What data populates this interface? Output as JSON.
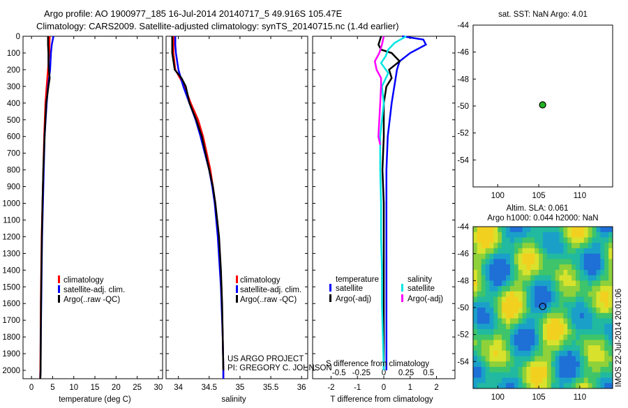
{
  "header": {
    "line1": "Argo profile: AO 1900977_185 16-Jul-2014 20140717_5 49.916S 105.47E",
    "line2": "Climatology: CARS2009. Satellite-adjusted climatology: synTS_20140715.nc (1.4d earlier)"
  },
  "colors": {
    "climatology": "#ff0000",
    "satellite": "#0000ff",
    "argo": "#000000",
    "salt_sat": "#00e5e5",
    "salt_argo": "#ff00ff"
  },
  "chart_data": [
    {
      "type": "line",
      "id": "temperature",
      "xlabel": "temperature (deg C)",
      "xlim": [
        -2,
        31
      ],
      "xticks": [
        0,
        5,
        10,
        15,
        20,
        25,
        30
      ],
      "ylim": [
        0,
        2050
      ],
      "yticks": [
        0,
        100,
        200,
        300,
        400,
        500,
        600,
        700,
        800,
        900,
        1000,
        1100,
        1200,
        1300,
        1400,
        1500,
        1600,
        1700,
        1800,
        1900,
        2000
      ],
      "legend": [
        "climatology",
        "satellite-adj. clim.",
        "Argo(..raw -QC)"
      ],
      "series": [
        {
          "name": "climatology",
          "depth": [
            0,
            100,
            200,
            300,
            400,
            600,
            800,
            1000,
            1200,
            1400,
            1600,
            1800,
            2000,
            2050
          ],
          "values": [
            4.3,
            4.2,
            3.9,
            3.6,
            3.3,
            3.0,
            2.8,
            2.6,
            2.4,
            2.3,
            2.2,
            2.15,
            2.1,
            2.05
          ]
        },
        {
          "name": "satellite-adj. clim.",
          "depth": [
            0,
            50,
            100,
            200,
            300,
            400,
            600,
            800,
            1000,
            1200,
            1400,
            1600,
            1800,
            2000,
            2050
          ],
          "values": [
            5.2,
            4.8,
            4.6,
            4.4,
            3.9,
            3.6,
            3.1,
            2.9,
            2.7,
            2.5,
            2.4,
            2.3,
            2.2,
            2.15,
            2.1
          ]
        },
        {
          "name": "Argo(..raw -QC)",
          "depth": [
            0,
            50,
            100,
            150,
            200,
            250,
            300,
            400,
            600,
            800,
            1000,
            1200,
            1400,
            1600,
            1800,
            2000,
            2050
          ],
          "values": [
            3.9,
            3.9,
            4.0,
            4.0,
            4.1,
            4.3,
            4.0,
            3.5,
            3.1,
            2.8,
            2.6,
            2.45,
            2.35,
            2.25,
            2.2,
            2.15,
            2.1
          ]
        }
      ]
    },
    {
      "type": "line",
      "id": "salinity",
      "xlabel": "salinity",
      "xlim": [
        33.8,
        36.1
      ],
      "xticks": [
        34,
        34.5,
        35,
        35.5,
        36
      ],
      "xtick_labels": [
        "34",
        "34.5",
        "35",
        "35.5",
        "36"
      ],
      "ylim": [
        0,
        2050
      ],
      "legend": [
        "climatology",
        "satellite-adj. clim.",
        "Argo(..raw -QC)"
      ],
      "series": [
        {
          "name": "climatology",
          "depth": [
            0,
            100,
            200,
            300,
            400,
            500,
            600,
            700,
            800,
            900,
            1000,
            1200,
            1500,
            1800,
            2000,
            2050
          ],
          "values": [
            33.92,
            33.92,
            33.95,
            34.1,
            34.2,
            34.32,
            34.4,
            34.46,
            34.52,
            34.56,
            34.6,
            34.65,
            34.7,
            34.72,
            34.73,
            34.73
          ]
        },
        {
          "name": "satellite-adj. clim.",
          "depth": [
            0,
            50,
            100,
            200,
            300,
            400,
            500,
            600,
            700,
            800,
            900,
            1000,
            1200,
            1500,
            1800,
            2000,
            2050
          ],
          "values": [
            33.95,
            33.95,
            33.96,
            34.0,
            34.08,
            34.18,
            34.28,
            34.36,
            34.43,
            34.5,
            34.55,
            34.59,
            34.64,
            34.69,
            34.72,
            34.73,
            34.73
          ]
        },
        {
          "name": "Argo(..raw -QC)",
          "depth": [
            0,
            100,
            150,
            200,
            250,
            300,
            350,
            400,
            500,
            600,
            700,
            800,
            900,
            1000,
            1100,
            1200,
            1400,
            1600,
            1800,
            2000
          ],
          "values": [
            33.9,
            33.9,
            33.92,
            33.94,
            34.05,
            34.12,
            34.15,
            34.18,
            34.29,
            34.38,
            34.44,
            34.5,
            34.56,
            34.6,
            34.63,
            34.66,
            34.69,
            34.71,
            34.72,
            34.73
          ]
        }
      ]
    },
    {
      "type": "line",
      "id": "difference",
      "xlabel": "T difference from climatology",
      "xlabel_top": "S difference from climatology",
      "xlim": [
        -2.7,
        2.7
      ],
      "xticks": [
        -2,
        -1,
        0,
        1,
        2
      ],
      "xtick_labels": [
        "-2",
        "-1",
        "0",
        "1",
        "2"
      ],
      "s_ticks": [
        -0.5,
        -0.25,
        0,
        0.25,
        0.5
      ],
      "s_tick_labels": [
        "-0.5",
        "-0.25",
        "0",
        "0.25",
        "0.5"
      ],
      "ylim": [
        0,
        2050
      ],
      "legend_headers": [
        "temperature",
        "salinity"
      ],
      "legend": [
        "satellite",
        "Argo(-adj)",
        "satellite",
        "Argo(-adj)"
      ],
      "series": [
        {
          "name": "T satellite",
          "depth": [
            0,
            20,
            50,
            100,
            150,
            200,
            300,
            400,
            600,
            800,
            1000,
            1200,
            1400,
            1600,
            1800,
            2000
          ],
          "values": [
            0.7,
            1.5,
            1.6,
            1.0,
            0.6,
            0.5,
            0.4,
            0.3,
            0.15,
            0.1,
            0.1,
            0.1,
            0.1,
            0.1,
            0.1,
            0.1
          ]
        },
        {
          "name": "T Argo(-adj)",
          "depth": [
            0,
            50,
            80,
            100,
            150,
            200,
            250,
            300,
            400,
            600,
            800,
            1000,
            1200,
            1400,
            1600,
            1800,
            2000
          ],
          "values": [
            -0.1,
            -0.2,
            -0.1,
            0.3,
            0.6,
            0.2,
            0.3,
            0.1,
            0.0,
            0.0,
            -0.05,
            0.0,
            0.0,
            0.0,
            0.0,
            0.0,
            0.0
          ]
        },
        {
          "name": "S satellite",
          "depth": [
            0,
            40,
            80,
            120,
            160,
            220,
            300,
            400,
            500,
            600,
            800,
            1000,
            1200,
            1400,
            1600,
            1800,
            2000
          ],
          "values": [
            0.25,
            0.12,
            0.05,
            0.02,
            -0.03,
            0.05,
            -0.02,
            0.0,
            -0.02,
            -0.04,
            -0.04,
            -0.03,
            -0.03,
            -0.02,
            -0.02,
            -0.01,
            0.0
          ]
        },
        {
          "name": "S Argo(-adj)",
          "depth": [
            0,
            50,
            100,
            150,
            200,
            250,
            300,
            400,
            500,
            600,
            650
          ],
          "values": [
            0.0,
            -0.02,
            -0.05,
            -0.1,
            -0.08,
            -0.03,
            -0.03,
            -0.04,
            -0.05,
            -0.06,
            -0.04
          ]
        }
      ]
    },
    {
      "type": "scatter",
      "id": "sst_map",
      "title": "sat. SST: NaN Argo: 4.01",
      "xlim": [
        97,
        114
      ],
      "ylim": [
        -56,
        -44
      ],
      "xticks": [
        100,
        105,
        110
      ],
      "yticks": [
        -44,
        -46,
        -48,
        -50,
        -52,
        -54
      ],
      "points": [
        {
          "x": 105.47,
          "y": -49.916
        }
      ]
    },
    {
      "type": "heatmap",
      "id": "sla_map",
      "title_line1": "Altim. SLA: 0.061",
      "title_line2": "Argo h1000: 0.044 h2000: NaN",
      "xlim": [
        97,
        114
      ],
      "ylim": [
        -56,
        -44
      ],
      "xticks": [
        100,
        105,
        110
      ],
      "yticks": [
        -44,
        -46,
        -48,
        -50,
        -52,
        -54
      ],
      "points": [
        {
          "x": 105.47,
          "y": -49.916
        }
      ]
    }
  ],
  "panel_text": {
    "credit1": "US ARGO PROJECT",
    "credit2": "PI: GREGORY C. JOHNSON",
    "watermark": "IMOS 22-Jul-2014 20:01:06"
  }
}
